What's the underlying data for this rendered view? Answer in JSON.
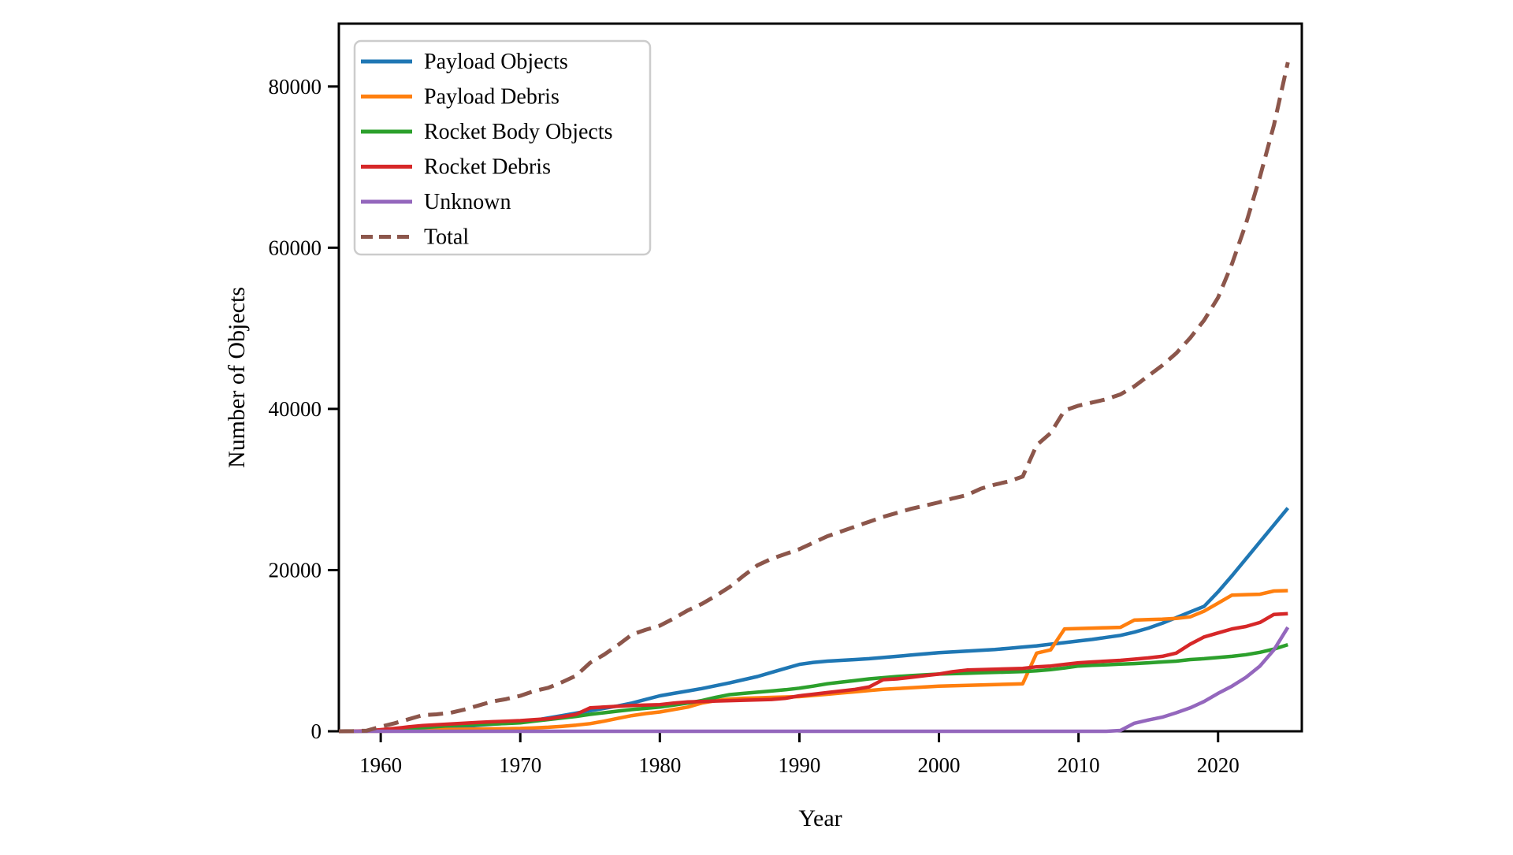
{
  "figure": {
    "background": "#ffffff",
    "axis_color": "#000000"
  },
  "chart_data": {
    "type": "line",
    "title": "",
    "xlabel": "Year",
    "ylabel": "Number of Objects",
    "xlim": [
      1957,
      2026
    ],
    "ylim": [
      0,
      87800
    ],
    "x_ticks": [
      1960,
      1970,
      1980,
      1990,
      2000,
      2010,
      2020
    ],
    "y_ticks": [
      0,
      20000,
      40000,
      60000,
      80000
    ],
    "grid": false,
    "legend": {
      "position": "upper-left",
      "border_color": "#cccccc",
      "background": "#ffffff"
    },
    "x": [
      1957,
      1958,
      1959,
      1960,
      1961,
      1962,
      1963,
      1964,
      1965,
      1966,
      1967,
      1968,
      1969,
      1970,
      1971,
      1972,
      1973,
      1974,
      1975,
      1976,
      1977,
      1978,
      1979,
      1980,
      1981,
      1982,
      1983,
      1984,
      1985,
      1986,
      1987,
      1988,
      1989,
      1990,
      1991,
      1992,
      1993,
      1994,
      1995,
      1996,
      1997,
      1998,
      1999,
      2000,
      2001,
      2002,
      2003,
      2004,
      2005,
      2006,
      2007,
      2008,
      2009,
      2010,
      2011,
      2012,
      2013,
      2014,
      2015,
      2016,
      2017,
      2018,
      2019,
      2020,
      2021,
      2022,
      2023,
      2024,
      2025
    ],
    "series": [
      {
        "name": "Payload Objects",
        "color": "#1f77b4",
        "style": "solid",
        "values": [
          0,
          5,
          15,
          40,
          90,
          160,
          260,
          360,
          470,
          600,
          750,
          880,
          1000,
          1150,
          1350,
          1650,
          1950,
          2250,
          2550,
          2850,
          3150,
          3500,
          3950,
          4400,
          4700,
          5000,
          5300,
          5650,
          6000,
          6400,
          6800,
          7300,
          7800,
          8300,
          8550,
          8700,
          8800,
          8900,
          9000,
          9150,
          9300,
          9450,
          9600,
          9750,
          9850,
          9950,
          10050,
          10150,
          10300,
          10450,
          10600,
          10800,
          11000,
          11200,
          11400,
          11650,
          11900,
          12300,
          12800,
          13400,
          14100,
          14800,
          15500,
          17300,
          19300,
          21400,
          23500,
          25600,
          27700
        ]
      },
      {
        "name": "Payload Debris",
        "color": "#ff7f0e",
        "style": "solid",
        "values": [
          0,
          0,
          5,
          10,
          30,
          120,
          200,
          220,
          230,
          250,
          280,
          300,
          320,
          350,
          420,
          500,
          620,
          760,
          950,
          1250,
          1600,
          1950,
          2200,
          2400,
          2700,
          3000,
          3500,
          3800,
          4000,
          4100,
          4150,
          4200,
          4250,
          4300,
          4450,
          4600,
          4750,
          4900,
          5050,
          5200,
          5300,
          5400,
          5500,
          5600,
          5650,
          5700,
          5750,
          5800,
          5850,
          5900,
          9700,
          10100,
          12700,
          12750,
          12800,
          12850,
          12900,
          13800,
          13850,
          13900,
          14000,
          14200,
          14900,
          15900,
          16900,
          16950,
          17000,
          17400,
          17450
        ]
      },
      {
        "name": "Rocket Body Objects",
        "color": "#2ca02c",
        "style": "solid",
        "values": [
          0,
          5,
          10,
          120,
          200,
          330,
          450,
          580,
          700,
          760,
          830,
          900,
          970,
          1050,
          1250,
          1450,
          1650,
          1850,
          2100,
          2300,
          2500,
          2700,
          2850,
          3000,
          3250,
          3500,
          3800,
          4200,
          4550,
          4700,
          4850,
          5000,
          5150,
          5350,
          5600,
          5900,
          6100,
          6300,
          6500,
          6650,
          6800,
          6900,
          7000,
          7100,
          7150,
          7200,
          7250,
          7300,
          7350,
          7400,
          7500,
          7650,
          7850,
          8100,
          8180,
          8250,
          8330,
          8400,
          8500,
          8600,
          8700,
          8900,
          9000,
          9150,
          9300,
          9500,
          9800,
          10200,
          10750
        ]
      },
      {
        "name": "Rocket Debris",
        "color": "#d62728",
        "style": "solid",
        "values": [
          0,
          10,
          50,
          200,
          350,
          550,
          700,
          800,
          900,
          1000,
          1100,
          1180,
          1250,
          1320,
          1450,
          1550,
          1800,
          2100,
          2900,
          3000,
          3100,
          3200,
          3250,
          3300,
          3500,
          3650,
          3700,
          3750,
          3800,
          3850,
          3900,
          3950,
          4100,
          4400,
          4600,
          4800,
          5000,
          5200,
          5500,
          6400,
          6500,
          6700,
          6900,
          7100,
          7400,
          7600,
          7650,
          7700,
          7750,
          7800,
          8000,
          8100,
          8300,
          8500,
          8600,
          8700,
          8800,
          8950,
          9100,
          9300,
          9700,
          10800,
          11700,
          12200,
          12700,
          13000,
          13500,
          14500,
          14600
        ]
      },
      {
        "name": "Unknown",
        "color": "#9467bd",
        "style": "solid",
        "values": [
          0,
          0,
          0,
          0,
          0,
          0,
          0,
          0,
          0,
          0,
          0,
          0,
          0,
          0,
          0,
          0,
          0,
          0,
          0,
          0,
          0,
          0,
          0,
          0,
          0,
          0,
          0,
          0,
          0,
          0,
          0,
          0,
          0,
          0,
          0,
          0,
          0,
          0,
          0,
          0,
          0,
          0,
          0,
          0,
          0,
          0,
          0,
          0,
          0,
          0,
          0,
          0,
          0,
          0,
          0,
          0,
          100,
          1000,
          1400,
          1750,
          2300,
          2900,
          3700,
          4700,
          5600,
          6700,
          8100,
          10100,
          12900
        ]
      },
      {
        "name": "Total",
        "color": "#8c564b",
        "style": "dashed",
        "values": [
          0,
          20,
          80,
          570,
          1000,
          1500,
          2000,
          2100,
          2300,
          2700,
          3200,
          3700,
          4000,
          4400,
          5000,
          5400,
          6100,
          6900,
          8500,
          9500,
          10700,
          12000,
          12600,
          13100,
          14000,
          15000,
          15800,
          16800,
          17900,
          19300,
          20600,
          21400,
          22000,
          22600,
          23400,
          24200,
          24800,
          25400,
          26000,
          26600,
          27100,
          27600,
          28000,
          28400,
          28900,
          29300,
          30100,
          30600,
          31000,
          31600,
          35500,
          37000,
          39800,
          40400,
          40800,
          41200,
          41800,
          42800,
          44100,
          45400,
          46900,
          48800,
          51000,
          53800,
          58000,
          63000,
          68800,
          75200,
          83000
        ]
      }
    ]
  }
}
